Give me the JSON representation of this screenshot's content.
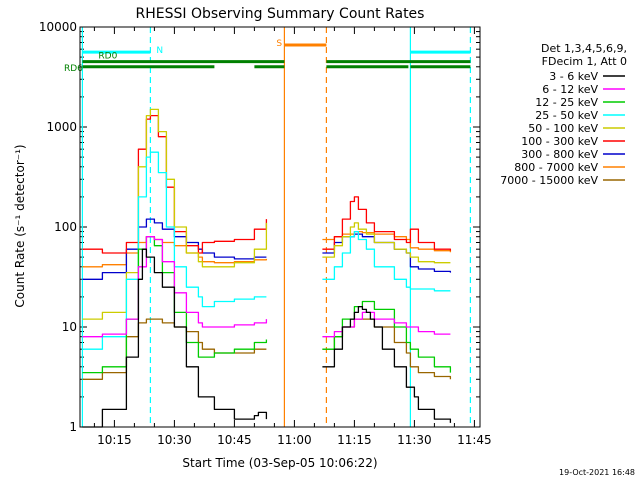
{
  "chart_data": {
    "type": "line",
    "title": "RHESSI Observing Summary Count Rates",
    "xlabel": "Start Time (03-Sep-05 10:06:22)",
    "ylabel": "Count Rate (s⁻¹ detector⁻¹)",
    "yscale": "log",
    "ylim": [
      1,
      10000
    ],
    "xlim_minutes": [
      6.4,
      106.4
    ],
    "x_unit": "minutes after 10:00 UT",
    "x_ticks": [
      {
        "label": "10:15",
        "t": 15
      },
      {
        "label": "10:30",
        "t": 30
      },
      {
        "label": "10:45",
        "t": 45
      },
      {
        "label": "11:00",
        "t": 60
      },
      {
        "label": "11:15",
        "t": 75
      },
      {
        "label": "11:30",
        "t": 90
      },
      {
        "label": "11:45",
        "t": 105
      }
    ],
    "y_ticks": [
      {
        "label": "1",
        "v": 1
      },
      {
        "label": "10",
        "v": 10
      },
      {
        "label": "100",
        "v": 100
      },
      {
        "label": "1000",
        "v": 1000
      },
      {
        "label": "10000",
        "v": 10000
      }
    ],
    "legend_header": [
      "Det 1,3,4,5,6,9,",
      "FDecim 1, Att 0"
    ],
    "legend_position": "right",
    "footer": "19-Oct-2021 16:48",
    "series": [
      {
        "name": "3 - 6 keV",
        "color": "#000000",
        "t": [
          7,
          12,
          18,
          21,
          22,
          23,
          25,
          27,
          30,
          33,
          36,
          40,
          45,
          50,
          51,
          53,
          57,
          60,
          63,
          66,
          67,
          70,
          72,
          74,
          75,
          76,
          77,
          78,
          79,
          80,
          82,
          85,
          88,
          90,
          91,
          95,
          99,
          100
        ],
        "v": [
          1,
          1.5,
          5,
          30,
          60,
          50,
          35,
          25,
          10,
          4,
          2,
          1.5,
          1.2,
          1.3,
          1.4,
          1.2,
          null,
          null,
          null,
          null,
          4,
          6,
          10,
          12,
          14,
          16,
          15,
          14,
          12,
          10,
          6,
          4,
          2.5,
          2,
          1.5,
          1.2,
          1.1,
          null
        ]
      },
      {
        "name": "6 - 12 keV",
        "color": "#ff00ff",
        "t": [
          7,
          12,
          18,
          21,
          23,
          25,
          27,
          30,
          33,
          36,
          37,
          40,
          45,
          50,
          53,
          57,
          60,
          63,
          66,
          67,
          70,
          72,
          75,
          77,
          80,
          85,
          88,
          89,
          91,
          95,
          99,
          100
        ],
        "v": [
          8,
          8.5,
          12,
          40,
          80,
          75,
          45,
          22,
          14,
          11,
          10,
          10,
          10.5,
          11,
          12,
          null,
          null,
          null,
          null,
          8,
          9,
          10,
          12,
          14,
          12,
          11,
          10,
          10,
          9,
          8.5,
          8.5,
          null
        ]
      },
      {
        "name": "12 - 25 keV",
        "color": "#00cc00",
        "t": [
          7,
          12,
          18,
          21,
          23,
          25,
          27,
          30,
          33,
          36,
          37,
          40,
          45,
          50,
          53,
          57,
          60,
          63,
          66,
          67,
          70,
          72,
          75,
          77,
          80,
          85,
          88,
          89,
          91,
          95,
          99,
          100
        ],
        "v": [
          3.5,
          4,
          12,
          60,
          80,
          65,
          35,
          14,
          7,
          5,
          5,
          5.5,
          6,
          7,
          7.5,
          null,
          null,
          null,
          null,
          6,
          8,
          12,
          16,
          18,
          15,
          10,
          7,
          6,
          5,
          4,
          3.5,
          null
        ]
      },
      {
        "name": "25 - 50 keV",
        "color": "#00ffff",
        "t": [
          7,
          12,
          18,
          21,
          23,
          24,
          26,
          28,
          30,
          33,
          36,
          37,
          40,
          45,
          50,
          53,
          57,
          60,
          63,
          66,
          67,
          70,
          72,
          74,
          75,
          76,
          78,
          80,
          85,
          88,
          89,
          91,
          95,
          99,
          100
        ],
        "v": [
          6,
          8,
          30,
          200,
          500,
          560,
          350,
          100,
          40,
          25,
          20,
          16,
          18,
          19,
          20,
          20,
          null,
          null,
          null,
          null,
          30,
          40,
          55,
          80,
          90,
          75,
          60,
          40,
          30,
          25,
          24,
          24,
          23,
          23,
          null
        ]
      },
      {
        "name": "50 - 100 keV",
        "color": "#cccc00",
        "t": [
          7,
          12,
          18,
          21,
          23,
          24,
          26,
          28,
          30,
          33,
          36,
          37,
          40,
          45,
          50,
          53,
          57,
          60,
          63,
          66,
          67,
          70,
          72,
          74,
          75,
          76,
          78,
          80,
          85,
          88,
          89,
          91,
          95,
          99,
          100
        ],
        "v": [
          12,
          14,
          35,
          400,
          1300,
          1500,
          900,
          300,
          100,
          55,
          45,
          40,
          40,
          44,
          60,
          110,
          null,
          null,
          null,
          null,
          50,
          65,
          80,
          100,
          110,
          95,
          85,
          70,
          60,
          55,
          50,
          45,
          44,
          44,
          null
        ]
      },
      {
        "name": "100 - 300 keV",
        "color": "#ff0000",
        "t": [
          7,
          12,
          18,
          21,
          23,
          24,
          26,
          28,
          30,
          33,
          36,
          37,
          40,
          45,
          50,
          53,
          57,
          60,
          63,
          66,
          67,
          70,
          72,
          74,
          75,
          76,
          78,
          80,
          85,
          88,
          89,
          91,
          95,
          99,
          100
        ],
        "v": [
          60,
          55,
          70,
          600,
          1200,
          1300,
          800,
          250,
          90,
          65,
          55,
          70,
          72,
          75,
          95,
          120,
          null,
          null,
          null,
          null,
          60,
          80,
          120,
          180,
          200,
          150,
          110,
          90,
          75,
          70,
          95,
          70,
          60,
          58,
          null
        ]
      },
      {
        "name": "300 - 800 keV",
        "color": "#0000cc",
        "t": [
          7,
          12,
          18,
          21,
          23,
          25,
          27,
          30,
          33,
          36,
          37,
          40,
          45,
          50,
          53,
          57,
          60,
          63,
          66,
          67,
          70,
          72,
          75,
          77,
          80,
          85,
          88,
          89,
          91,
          95,
          99,
          100
        ],
        "v": [
          30,
          35,
          60,
          100,
          120,
          110,
          95,
          80,
          70,
          60,
          55,
          50,
          48,
          50,
          50,
          null,
          null,
          null,
          null,
          55,
          70,
          80,
          85,
          80,
          70,
          60,
          55,
          40,
          38,
          36,
          35,
          null
        ]
      },
      {
        "name": "800 - 7000 keV",
        "color": "#ff8000",
        "t": [
          7,
          12,
          18,
          21,
          23,
          25,
          27,
          30,
          33,
          36,
          37,
          40,
          45,
          50,
          53,
          57,
          60,
          63,
          66,
          67,
          70,
          72,
          75,
          77,
          80,
          85,
          88,
          89,
          91,
          95,
          99,
          100
        ],
        "v": [
          40,
          42,
          55,
          70,
          80,
          75,
          70,
          65,
          55,
          50,
          45,
          44,
          45,
          47,
          48,
          null,
          null,
          null,
          null,
          75,
          80,
          85,
          90,
          88,
          85,
          80,
          75,
          62,
          60,
          58,
          56,
          null
        ]
      },
      {
        "name": "7000 - 15000 keV",
        "color": "#996600",
        "t": [
          7,
          12,
          18,
          21,
          23,
          25,
          27,
          30,
          33,
          36,
          37,
          40,
          45,
          50,
          53,
          57,
          60,
          63,
          66,
          67,
          70,
          72,
          75,
          77,
          80,
          85,
          88,
          89,
          91,
          95,
          99,
          100
        ],
        "v": [
          3,
          3.5,
          8,
          11,
          12,
          12,
          11,
          10,
          9,
          7,
          6,
          5.5,
          5.5,
          6,
          6,
          null,
          null,
          null,
          null,
          6,
          8,
          10,
          12,
          12,
          10,
          7,
          5.5,
          4,
          3.5,
          3.2,
          3,
          null
        ]
      }
    ],
    "annotations": {
      "rd6": {
        "label": "RD6",
        "color": "#008000",
        "segments": [
          [
            7,
            40
          ],
          [
            50,
            57.5
          ],
          [
            68,
            88.5
          ],
          [
            89,
            104
          ]
        ],
        "level": 4000
      },
      "rd0": {
        "label": "RD0",
        "color": "#008000",
        "segments": [
          [
            7,
            57.5
          ],
          [
            68,
            104
          ]
        ],
        "level": 4500
      },
      "night": {
        "label": "N",
        "color": "#00ffff",
        "segments": [
          [
            7,
            24
          ],
          [
            89,
            104
          ]
        ],
        "level": 5600,
        "dashes_at": [
          24,
          104
        ],
        "solids_at": [
          7,
          89
        ]
      },
      "saa": {
        "label": "S",
        "color": "#ff8000",
        "segments": [
          [
            57.5,
            68
          ]
        ],
        "level": 6600,
        "solid_at": 57.5,
        "dash_at": 68
      }
    }
  }
}
